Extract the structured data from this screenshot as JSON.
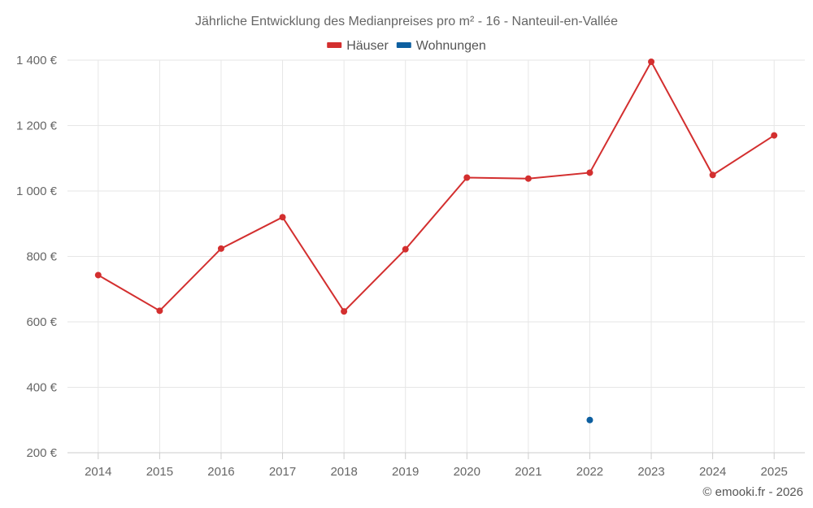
{
  "chart_data": {
    "type": "line",
    "title": "Jährliche Entwicklung des Medianpreises pro m² - 16 - Nanteuil-en-Vallée",
    "categories": [
      "2014",
      "2015",
      "2016",
      "2017",
      "2018",
      "2019",
      "2020",
      "2021",
      "2022",
      "2023",
      "2024",
      "2025"
    ],
    "ylim": [
      200,
      1400
    ],
    "yticks": [
      200,
      400,
      600,
      800,
      1000,
      1200,
      1400
    ],
    "ytick_labels": [
      "200 €",
      "400 €",
      "600 €",
      "800 €",
      "1 000 €",
      "1 200 €",
      "1 400 €"
    ],
    "grid": true,
    "legend_position": "top-center",
    "series": [
      {
        "name": "Häuser",
        "color": "#d32f2f",
        "values": [
          743,
          634,
          824,
          920,
          632,
          822,
          1041,
          1038,
          1056,
          1395,
          1049,
          1170
        ]
      },
      {
        "name": "Wohnungen",
        "color": "#0d5fa0",
        "values": [
          null,
          null,
          null,
          null,
          null,
          null,
          null,
          null,
          300,
          null,
          null,
          null
        ]
      }
    ]
  },
  "copyright": "© emooki.fr - 2026"
}
